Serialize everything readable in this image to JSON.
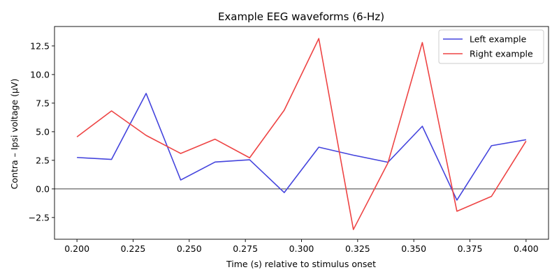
{
  "chart_data": {
    "type": "line",
    "title": "Example EEG waveforms (6-Hz)",
    "xlabel": "Time (s) relative to stimulus onset",
    "ylabel": "Contra – Ipsi voltage (µV)",
    "xlim": [
      0.19,
      0.41
    ],
    "ylim": [
      -4.4,
      14.2
    ],
    "xticks": [
      0.2,
      0.225,
      0.25,
      0.275,
      0.3,
      0.325,
      0.35,
      0.375,
      0.4
    ],
    "xtick_labels": [
      "0.200",
      "0.225",
      "0.250",
      "0.275",
      "0.300",
      "0.325",
      "0.350",
      "0.375",
      "0.400"
    ],
    "yticks": [
      -2.5,
      0.0,
      2.5,
      5.0,
      7.5,
      10.0,
      12.5
    ],
    "ytick_labels": [
      "−2.5",
      "0.0",
      "2.5",
      "5.0",
      "7.5",
      "10.0",
      "12.5"
    ],
    "zero_line": 0,
    "grid": false,
    "legend_position": "top-right",
    "x": [
      0.2,
      0.2154,
      0.2308,
      0.2462,
      0.2615,
      0.2769,
      0.2923,
      0.3077,
      0.3231,
      0.3385,
      0.3538,
      0.3692,
      0.3846,
      0.4
    ],
    "series": [
      {
        "name": "Left example",
        "color": "#4444dd",
        "values": [
          2.75,
          2.58,
          8.35,
          0.78,
          2.35,
          2.55,
          -0.32,
          3.65,
          2.95,
          2.33,
          5.48,
          -0.98,
          3.78,
          4.3
        ]
      },
      {
        "name": "Right example",
        "color": "#ee4444",
        "values": [
          4.55,
          6.82,
          4.68,
          3.1,
          4.35,
          2.72,
          6.88,
          13.15,
          -3.55,
          2.28,
          12.8,
          -1.95,
          -0.65,
          4.18
        ]
      }
    ]
  }
}
